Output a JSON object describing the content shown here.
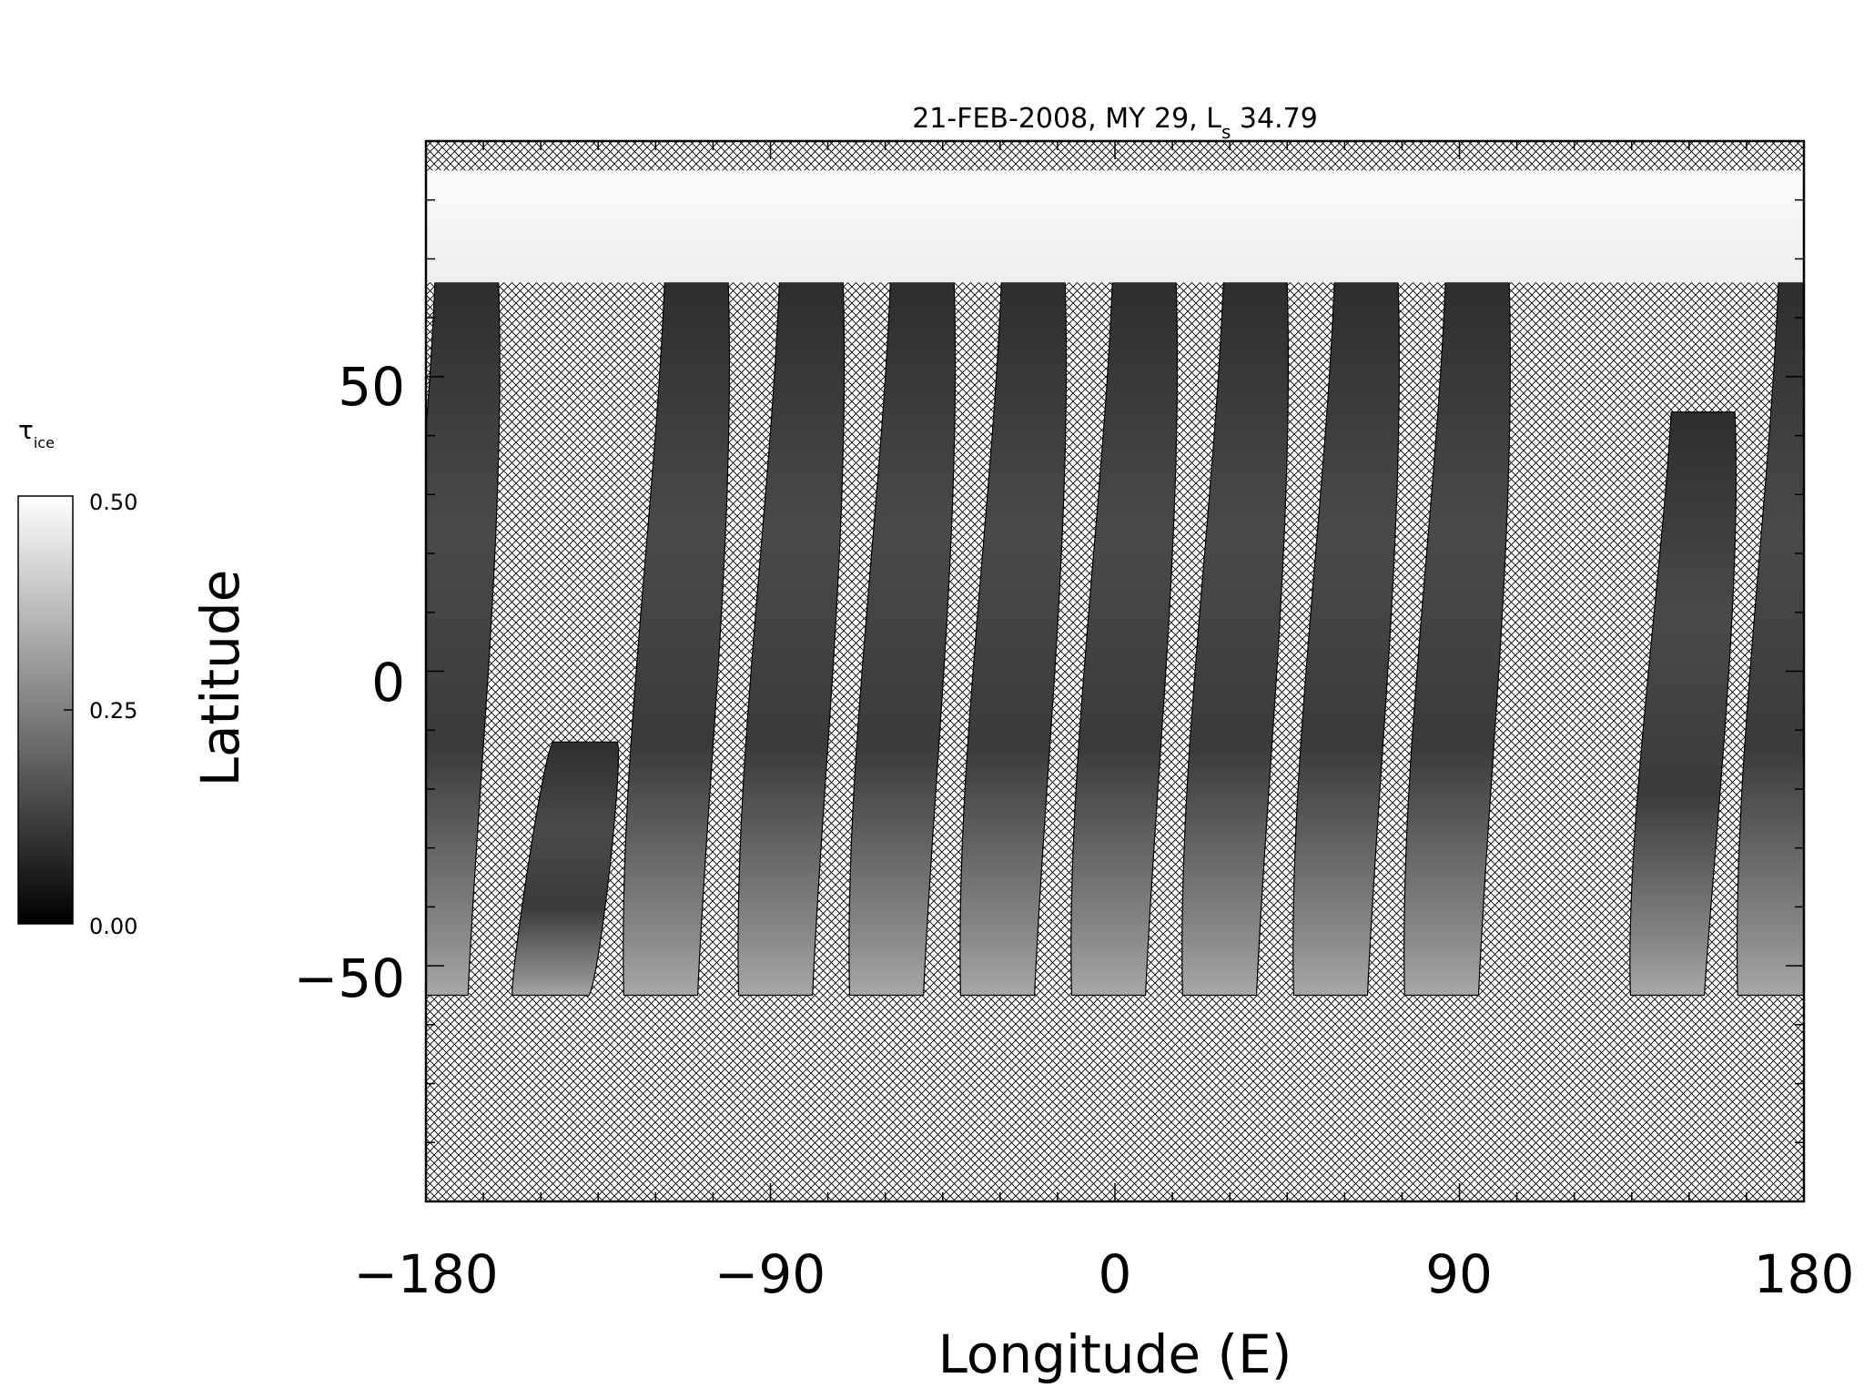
{
  "title": {
    "main": "21-FEB-2008, MY 29,  L",
    "subscript": "s",
    "tail": " 34.79"
  },
  "colorbar": {
    "symbol": "τ",
    "subscript": "ice",
    "tick_labels": [
      "0.50",
      "0.25",
      "0.00"
    ],
    "range": [
      0.0,
      0.5
    ],
    "colormap": "grayscale (black = 0.00, white = 0.50)"
  },
  "map": {
    "projection": "simple cylindrical",
    "x_axis": {
      "label": "Longitude (E)",
      "range": [
        -180,
        180
      ],
      "tick_labels": [
        "−180",
        "−90",
        "0",
        "90",
        "180"
      ],
      "tick_values": [
        -180,
        -90,
        0,
        90,
        180
      ]
    },
    "y_axis": {
      "label": "Latitude",
      "range": [
        -90,
        90
      ],
      "tick_labels": [
        "50",
        "0",
        "−50"
      ],
      "tick_values": [
        50,
        0,
        -50
      ]
    },
    "no_data_fill": "crosshatch",
    "north_polar_cap": {
      "lat_from": 66,
      "lat_to": 85,
      "shade": "white"
    },
    "swaths": [
      {
        "lon_center": -176,
        "lat_top": 66,
        "lat_bottom": -55
      },
      {
        "lon_center": -145,
        "lat_top": -12,
        "lat_bottom": -55
      },
      {
        "lon_center": -116,
        "lat_top": 66,
        "lat_bottom": -55
      },
      {
        "lon_center": -86,
        "lat_top": 66,
        "lat_bottom": -55
      },
      {
        "lon_center": -57,
        "lat_top": 66,
        "lat_bottom": -55
      },
      {
        "lon_center": -28,
        "lat_top": 66,
        "lat_bottom": -55
      },
      {
        "lon_center": 1,
        "lat_top": 66,
        "lat_bottom": -55
      },
      {
        "lon_center": 30,
        "lat_top": 66,
        "lat_bottom": -55
      },
      {
        "lon_center": 59,
        "lat_top": 66,
        "lat_bottom": -55
      },
      {
        "lon_center": 88,
        "lat_top": 66,
        "lat_bottom": -55
      },
      {
        "lon_center": 147,
        "lat_top": 44,
        "lat_bottom": -55
      },
      {
        "lon_center": 175,
        "lat_top": 66,
        "lat_bottom": -55
      }
    ]
  },
  "colors": {
    "background": "#ffffff",
    "axis": "#000000",
    "hatch": "#000000",
    "swath_dark": "#2a2a2a",
    "swath_mid": "#505050",
    "cap": "#f8f8f8"
  }
}
